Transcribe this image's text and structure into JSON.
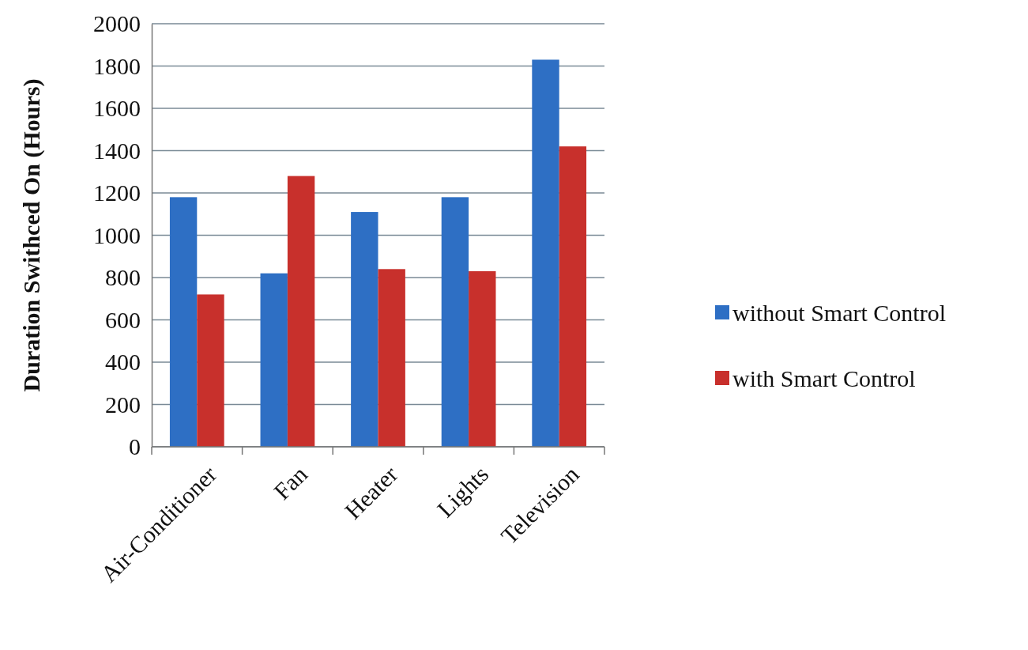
{
  "chart_data": {
    "type": "bar",
    "ylabel": "Duration Swithced On (Hours)",
    "categories": [
      "Air-Conditioner",
      "Fan",
      "Heater",
      "Lights",
      "Television"
    ],
    "series": [
      {
        "name": "without Smart Control",
        "color": "#2e6fc4",
        "values": [
          1180,
          820,
          1110,
          1180,
          1830
        ]
      },
      {
        "name": "with Smart Control",
        "color": "#c8302c",
        "values": [
          720,
          1280,
          840,
          830,
          1420
        ]
      }
    ],
    "ylim": [
      0,
      2000
    ],
    "yticks": [
      0,
      200,
      400,
      600,
      800,
      1000,
      1200,
      1400,
      1600,
      1800,
      2000
    ],
    "grid": "y",
    "legend": "right"
  }
}
